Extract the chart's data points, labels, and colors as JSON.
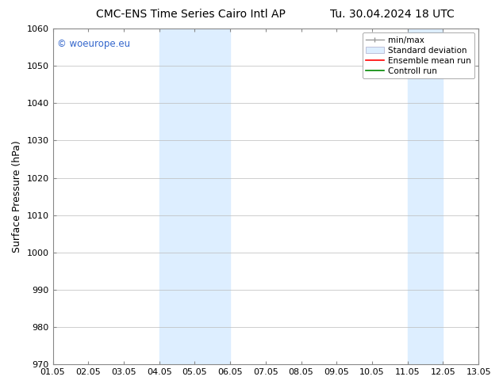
{
  "title_left": "CMC-ENS Time Series Cairo Intl AP",
  "title_right": "Tu. 30.04.2024 18 UTC",
  "ylabel": "Surface Pressure (hPa)",
  "ylim": [
    970,
    1060
  ],
  "yticks": [
    970,
    980,
    990,
    1000,
    1010,
    1020,
    1030,
    1040,
    1050,
    1060
  ],
  "xtick_labels": [
    "01.05",
    "02.05",
    "03.05",
    "04.05",
    "05.05",
    "06.05",
    "07.05",
    "08.05",
    "09.05",
    "10.05",
    "11.05",
    "12.05",
    "13.05"
  ],
  "xlim": [
    0,
    12
  ],
  "shaded_regions": [
    {
      "x_start": 3,
      "x_end": 5,
      "color": "#ddeeff"
    },
    {
      "x_start": 10,
      "x_end": 11,
      "color": "#ddeeff"
    }
  ],
  "watermark_text": "© woeurope.eu",
  "watermark_color": "#3366cc",
  "background_color": "#ffffff",
  "grid_color": "#bbbbbb",
  "legend_items": [
    {
      "label": "min/max"
    },
    {
      "label": "Standard deviation"
    },
    {
      "label": "Ensemble mean run"
    },
    {
      "label": "Controll run"
    }
  ],
  "title_fontsize": 10,
  "tick_fontsize": 8,
  "ylabel_fontsize": 9,
  "legend_fontsize": 7.5
}
